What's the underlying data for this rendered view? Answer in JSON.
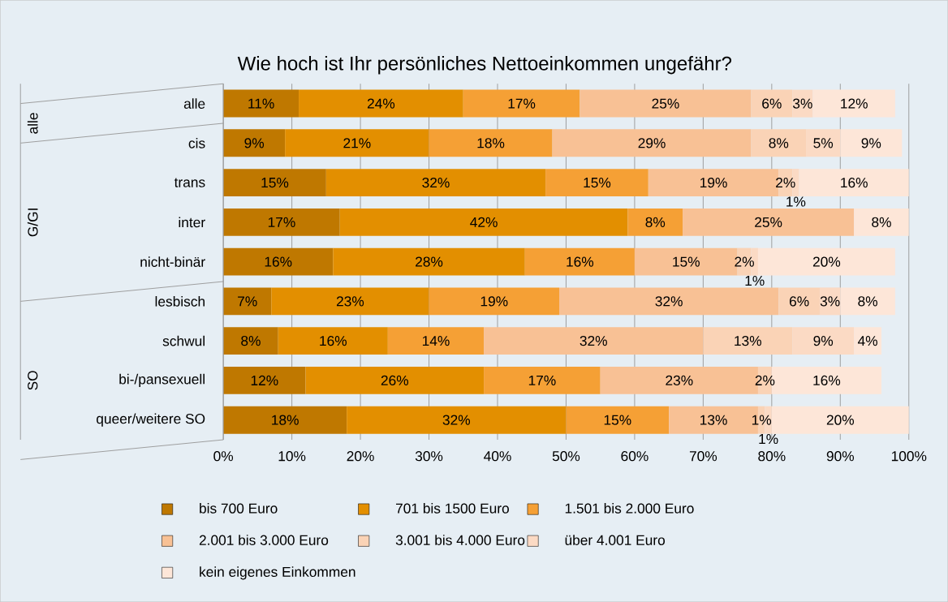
{
  "chart_data": {
    "type": "bar",
    "orientation": "horizontal",
    "stacked": true,
    "title": "Wie hoch ist Ihr persönliches Nettoeinkommen ungefähr?",
    "categories": [
      "alle",
      "cis",
      "trans",
      "inter",
      "nicht-binär",
      "lesbisch",
      "schwul",
      "bi-/pansexuell",
      "queer/weitere SO"
    ],
    "annotations": [
      "alle",
      "G/GI",
      "SO"
    ],
    "series": [
      {
        "name": "bis 700 Euro",
        "color": "#bf7800",
        "values": [
          11,
          9,
          15,
          17,
          16,
          7,
          8,
          12,
          18
        ],
        "value_labels": [
          "11%",
          "9%",
          "15%",
          "17%",
          "16%",
          "7%",
          "8%",
          "12%",
          "18%"
        ]
      },
      {
        "name": "701 bis 1500 Euro",
        "color": "#e38f00",
        "values": [
          24,
          21,
          32,
          42,
          28,
          23,
          16,
          26,
          32
        ],
        "value_labels": [
          "24%",
          "21%",
          "32%",
          "42%",
          "28%",
          "23%",
          "16%",
          "26%",
          "32%"
        ]
      },
      {
        "name": "1.501 bis 2.000 Euro",
        "color": "#f5a035",
        "values": [
          17,
          18,
          15,
          8,
          16,
          19,
          14,
          17,
          15
        ],
        "value_labels": [
          "17%",
          "18%",
          "15%",
          "8%",
          "16%",
          "19%",
          "14%",
          "17%",
          "15%"
        ]
      },
      {
        "name": "2.001 bis 3.000 Euro",
        "color": "#f8c195",
        "values": [
          25,
          29,
          19,
          25,
          15,
          32,
          32,
          23,
          13
        ],
        "value_labels": [
          "25%",
          "29%",
          "19%",
          "25%",
          "15%",
          "32%",
          "32%",
          "23%",
          "13%"
        ]
      },
      {
        "name": "3.001 bis 4.000 Euro",
        "color": "#fad3b6",
        "values": [
          6,
          8,
          2,
          null,
          2,
          6,
          13,
          2,
          1
        ],
        "value_labels": [
          "6%",
          "8%",
          "2%",
          null,
          "2%",
          "6%",
          "13%",
          "2%",
          "1%"
        ]
      },
      {
        "name": "über 4.001 Euro",
        "color": "#fbdac4",
        "values": [
          3,
          5,
          1,
          null,
          1,
          3,
          9,
          null,
          1
        ],
        "value_labels": [
          "3%",
          "5%",
          "1%",
          null,
          "1%",
          "3%",
          "9%",
          null,
          "1%"
        ]
      },
      {
        "name": "kein eigenes Einkommen",
        "color": "#fde6d8",
        "values": [
          12,
          9,
          16,
          8,
          20,
          8,
          4,
          16,
          20
        ],
        "value_labels": [
          "12%",
          "9%",
          "16%",
          "8%",
          "20%",
          "8%",
          "4%",
          "16%",
          "20%"
        ]
      }
    ],
    "xlim": [
      0,
      100
    ],
    "xticks": [
      {
        "value": 0,
        "label": "0%"
      },
      {
        "value": 10,
        "label": "10%"
      },
      {
        "value": 20,
        "label": "20%"
      },
      {
        "value": 30,
        "label": "30%"
      },
      {
        "value": 40,
        "label": "40%"
      },
      {
        "value": 50,
        "label": "50%"
      },
      {
        "value": 60,
        "label": "60%"
      },
      {
        "value": 70,
        "label": "70%"
      },
      {
        "value": 80,
        "label": "80%"
      },
      {
        "value": 90,
        "label": "90%"
      },
      {
        "value": 100,
        "label": "100%"
      }
    ],
    "grid": "x",
    "legend": "bottom"
  }
}
